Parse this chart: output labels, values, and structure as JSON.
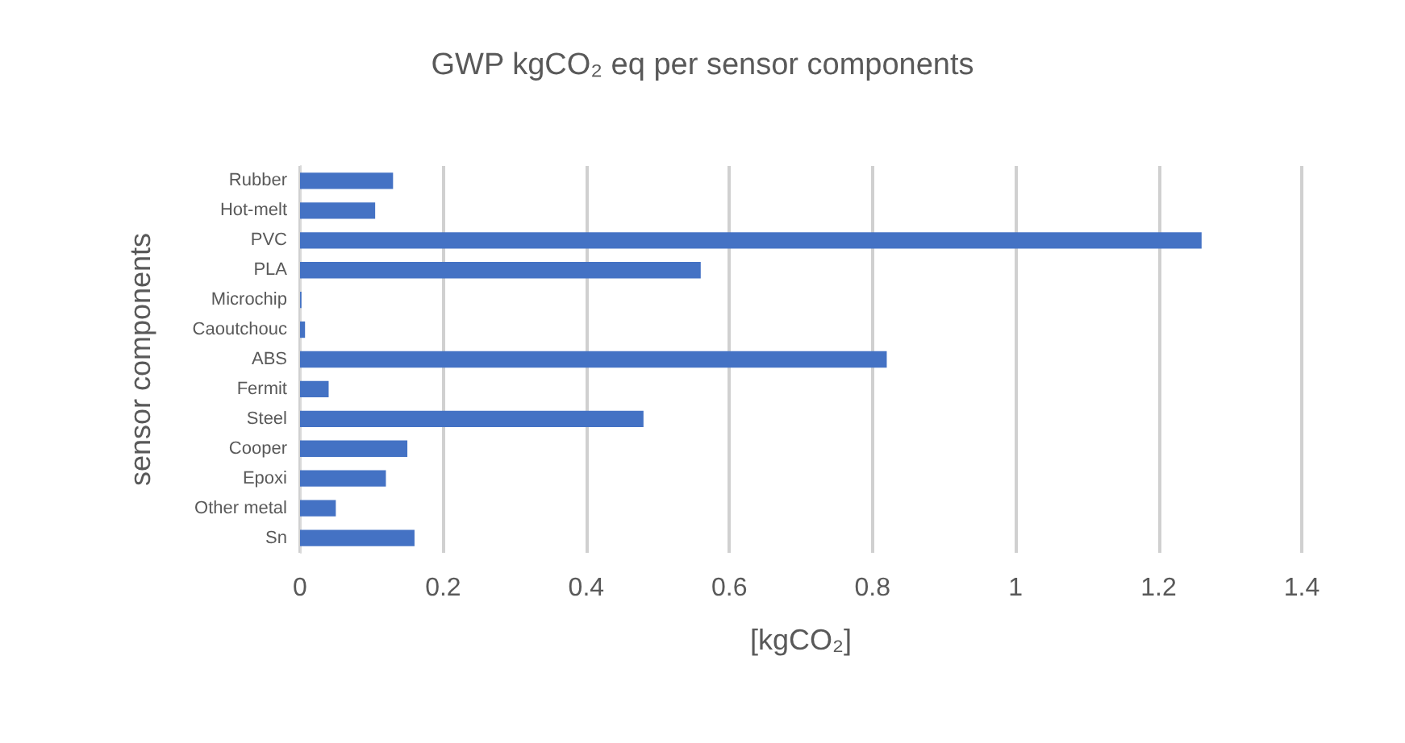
{
  "chart_data": {
    "type": "bar",
    "orientation": "horizontal",
    "title": "GWP kgCO₂ eq per sensor components",
    "xlabel": "[kgCO₂]",
    "ylabel": "sensor components",
    "categories": [
      "Rubber",
      "Hot-melt",
      "PVC",
      "PLA",
      "Microchip",
      "Caoutchouc",
      "ABS",
      "Fermit",
      "Steel",
      "Cooper",
      "Epoxi",
      "Other metal",
      "Sn"
    ],
    "values": [
      0.13,
      0.105,
      1.26,
      0.56,
      0.002,
      0.007,
      0.82,
      0.04,
      0.48,
      0.15,
      0.12,
      0.05,
      0.16
    ],
    "color": "#4472c4",
    "xlim": [
      0,
      1.4
    ],
    "xticks": [
      0,
      0.2,
      0.4,
      0.6,
      0.8,
      1,
      1.2,
      1.4
    ],
    "grid": "x"
  }
}
